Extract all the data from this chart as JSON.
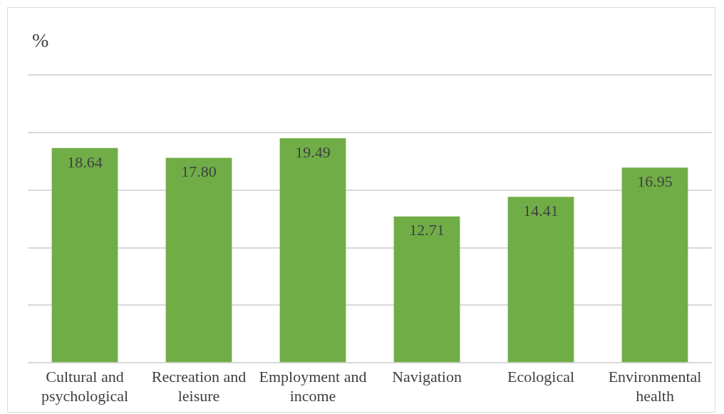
{
  "chart_data": {
    "type": "bar",
    "ylabel": "%",
    "categories": [
      "Cultural and psychological",
      "Recreation and leisure",
      "Employment and income",
      "Navigation",
      "Ecological",
      "Environmental health"
    ],
    "values": [
      18.64,
      17.8,
      19.49,
      12.71,
      14.41,
      16.95
    ],
    "value_labels": [
      "18.64",
      "17.80",
      "19.49",
      "12.71",
      "14.41",
      "16.95"
    ],
    "color": "#70ad47",
    "ylim": [
      0,
      25
    ],
    "yticks": [
      {
        "value": 0,
        "label": null
      },
      {
        "value": 5,
        "label": null
      },
      {
        "value": 10,
        "label": null
      },
      {
        "value": 15,
        "label": null
      },
      {
        "value": 20,
        "label": null
      },
      {
        "value": 25,
        "label": null
      }
    ],
    "grid": "y",
    "tick_labels": "x",
    "legend": false
  }
}
